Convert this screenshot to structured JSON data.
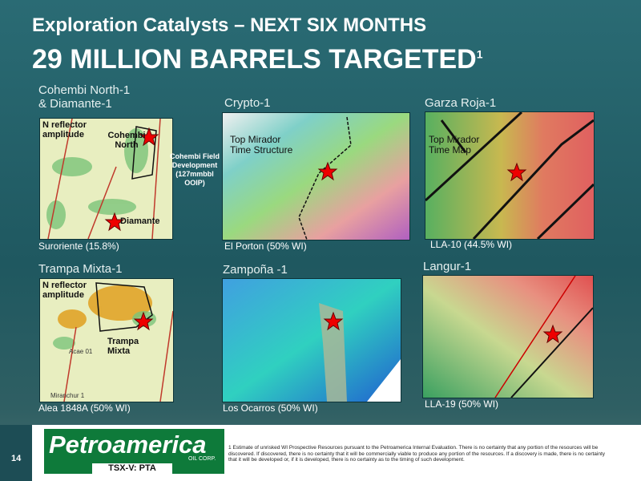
{
  "header": {
    "title": "Exploration Catalysts – NEXT SIX MONTHS",
    "subtitle": "29 MILLION BARRELS TARGETED",
    "subtitle_note": "1"
  },
  "panels": [
    {
      "title": [
        "Cohembi North-1",
        "& Diamante-1"
      ],
      "caption": "Suroriente (15.8%)",
      "labels": [
        "N reflector amplitude",
        "Cohembi North",
        "Diamante"
      ],
      "callout": "Cohembi Field Development (127mmbbl OOIP)"
    },
    {
      "title": "Crypto-1",
      "caption": "El Porton (50% WI)",
      "labels": [
        "Top Mirador Time Structure"
      ]
    },
    {
      "title": "Garza Roja-1",
      "caption": "LLA-10 (44.5% WI)",
      "labels": [
        "Top Mirador Time Map"
      ]
    },
    {
      "title": "Trampa Mixta-1",
      "caption": "Alea 1848A (50% WI)",
      "labels": [
        "N reflector amplitude",
        "Trampa Mixta",
        "Acae 01",
        "Miranchur 1"
      ]
    },
    {
      "title": "Zampoña -1",
      "caption": "Los Ocarros (50% WI)",
      "labels": []
    },
    {
      "title": "Langur-1",
      "caption": "LLA-19 (50% WI)",
      "labels": []
    }
  ],
  "footer": {
    "page_number": "14",
    "logo": "Petroamerica",
    "logo_suffix": "OIL CORP.",
    "ticker": "TSX-V: PTA",
    "footnote_marker": "1",
    "footnote": "Estimate of unrisked WI Prospective Resources pursuant to the Petroamerica Internal Evaluation.  There is no certainty that any portion of the resources will be discovered.  If discovered, there is no certainty that it will be commercially viable to produce any portion of the resources.  If a discovery is made, there is no certainty that it will be developed or, if it is developed, there is no certainty as to the timing of such development."
  }
}
